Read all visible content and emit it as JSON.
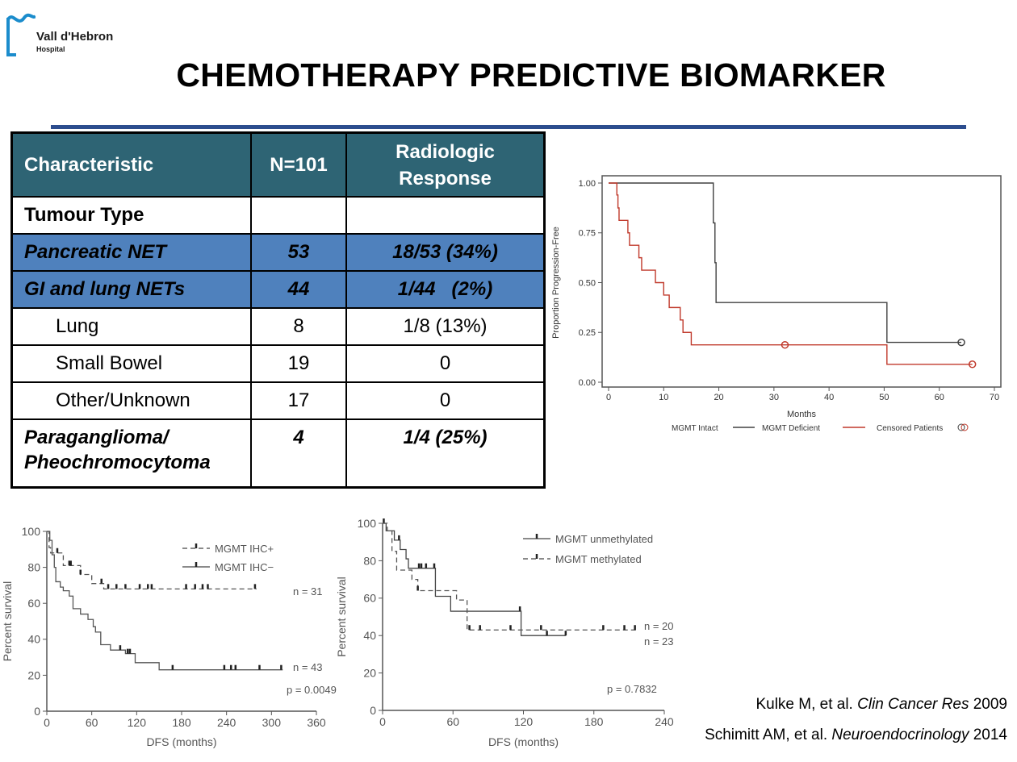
{
  "logo": {
    "name": "Vall d'Hebron",
    "sub": "Hospital"
  },
  "title": "CHEMOTHERAPY PREDICTIVE BIOMARKER",
  "colors": {
    "rule": "#2c4d8e",
    "table_header": "#2e6474",
    "table_highlight": "#4f81bd",
    "logo": "#1b8ccc",
    "deficient": "#c0392b"
  },
  "table": {
    "headers": [
      "Characteristic",
      "N=101",
      "Radiologic Response"
    ],
    "rows": [
      [
        "Tumour Type",
        "",
        ""
      ],
      [
        "Pancreatic NET",
        "53",
        "18/53 (34%)"
      ],
      [
        "GI and lung NETs",
        "44",
        "1/44   (2%)"
      ],
      [
        "Lung",
        "8",
        "1/8 (13%)"
      ],
      [
        "Small Bowel",
        "19",
        "0"
      ],
      [
        "Other/Unknown",
        "17",
        "0"
      ],
      [
        "Paraganglioma/ Pheochromocytoma",
        "4",
        "1/4 (25%)"
      ]
    ]
  },
  "references": [
    {
      "authors": "Kulke M, et al. ",
      "journal": "Clin Cancer Res",
      "year": " 2009"
    },
    {
      "authors": "Schimitt AM, et al. ",
      "journal": "Neuroendocrinology",
      "year": " 2014"
    }
  ],
  "chart_data": [
    {
      "type": "line",
      "title": "",
      "xlabel": "Months",
      "ylabel": "Proportion Progression-Free",
      "xlim": [
        0,
        70
      ],
      "ylim": [
        0,
        1
      ],
      "xticks": [
        "0",
        "10",
        "20",
        "30",
        "40",
        "50",
        "60",
        "70"
      ],
      "yticks": [
        "0.00",
        "0.25",
        "0.50",
        "0.75",
        "1.00"
      ],
      "legend": [
        "MGMT Intact",
        "MGMT Deficient",
        "Censored Patients"
      ],
      "legend_position": "bottom",
      "series": [
        {
          "name": "MGMT Intact",
          "color": "#404040",
          "dashed": false,
          "steps": [
            [
              0,
              1
            ],
            [
              19,
              0.8
            ],
            [
              19.3,
              0.6
            ],
            [
              19.5,
              0.4
            ],
            [
              50.5,
              0.2
            ]
          ],
          "end": 64,
          "censored": [
            [
              64,
              0.2
            ]
          ]
        },
        {
          "name": "MGMT Deficient",
          "color": "#c0392b",
          "dashed": false,
          "steps": [
            [
              0,
              1
            ],
            [
              1.5,
              0.94
            ],
            [
              1.7,
              0.875
            ],
            [
              1.9,
              0.8125
            ],
            [
              3.5,
              0.75
            ],
            [
              3.8,
              0.6875
            ],
            [
              5.5,
              0.625
            ],
            [
              6,
              0.5625
            ],
            [
              8.5,
              0.5
            ],
            [
              10,
              0.4375
            ],
            [
              11,
              0.375
            ],
            [
              13,
              0.3125
            ],
            [
              13.5,
              0.25
            ],
            [
              15,
              0.1875
            ],
            [
              50.5,
              0.09
            ]
          ],
          "end": 66,
          "censored": [
            [
              32,
              0.1875
            ],
            [
              66,
              0.09
            ]
          ]
        }
      ]
    },
    {
      "type": "line",
      "xlabel": "DFS (months)",
      "ylabel": "Percent survival",
      "xlim": [
        0,
        360
      ],
      "ylim": [
        0,
        100
      ],
      "xticks": [
        "0",
        "60",
        "120",
        "180",
        "240",
        "300",
        "360"
      ],
      "yticks": [
        "0",
        "20",
        "40",
        "60",
        "80",
        "100"
      ],
      "legend": [
        "MGMT IHC+",
        "MGMT IHC−"
      ],
      "legend_position": "top-right",
      "annotations": [
        "n = 31",
        "n = 43",
        "p = 0.0049"
      ],
      "series": [
        {
          "name": "MGMT IHC+",
          "color": "#555555",
          "dashed": true,
          "steps": [
            [
              0,
              100
            ],
            [
              3,
              91
            ],
            [
              5,
              88
            ],
            [
              22,
              81
            ],
            [
              45,
              76
            ],
            [
              60,
              71
            ],
            [
              76,
              68
            ]
          ],
          "end": 280,
          "ticks": [
            14,
            30,
            32,
            45,
            73,
            82,
            93,
            105,
            124,
            135,
            140,
            186,
            198,
            208,
            215,
            278
          ]
        },
        {
          "name": "MGMT IHC−",
          "color": "#555555",
          "dashed": false,
          "steps": [
            [
              0,
              100
            ],
            [
              4,
              95
            ],
            [
              7,
              87
            ],
            [
              10,
              80
            ],
            [
              12,
              72
            ],
            [
              18,
              69
            ],
            [
              22,
              67
            ],
            [
              30,
              64
            ],
            [
              35,
              57
            ],
            [
              45,
              54
            ],
            [
              55,
              51
            ],
            [
              62,
              47
            ],
            [
              65,
              44
            ],
            [
              72,
              37
            ],
            [
              85,
              34
            ],
            [
              105,
              32
            ],
            [
              118,
              27
            ],
            [
              150,
              23
            ]
          ],
          "end": 315,
          "ticks": [
            98,
            108,
            111,
            168,
            237,
            246,
            252,
            284,
            313
          ]
        }
      ]
    },
    {
      "type": "line",
      "xlabel": "DFS (months)",
      "ylabel": "Percent survival",
      "xlim": [
        0,
        240
      ],
      "ylim": [
        0,
        100
      ],
      "xticks": [
        "0",
        "60",
        "120",
        "180",
        "240"
      ],
      "yticks": [
        "0",
        "20",
        "40",
        "60",
        "80",
        "100"
      ],
      "legend": [
        "MGMT unmethylated",
        "MGMT methylated"
      ],
      "legend_position": "top-right",
      "annotations": [
        "n = 20",
        "n = 23",
        "p = 0.7832"
      ],
      "series": [
        {
          "name": "MGMT unmethylated",
          "color": "#444444",
          "dashed": false,
          "steps": [
            [
              0,
              100
            ],
            [
              3,
              96
            ],
            [
              10,
              91
            ],
            [
              15,
              86
            ],
            [
              20,
              81
            ],
            [
              22,
              76
            ],
            [
              45,
              61
            ],
            [
              58,
              53
            ],
            [
              118,
              40
            ]
          ],
          "end": 156,
          "ticks": [
            1,
            14,
            31,
            33,
            37,
            44,
            117,
            140,
            156
          ]
        },
        {
          "name": "MGMT methylated",
          "color": "#555555",
          "dashed": true,
          "steps": [
            [
              0,
              100
            ],
            [
              4,
              96
            ],
            [
              8,
              85
            ],
            [
              12,
              75
            ],
            [
              25,
              70
            ],
            [
              30,
              64
            ],
            [
              63,
              59
            ],
            [
              72,
              43
            ]
          ],
          "end": 217,
          "ticks": [
            30,
            74,
            83,
            109,
            135,
            188,
            206,
            215
          ]
        }
      ]
    }
  ]
}
